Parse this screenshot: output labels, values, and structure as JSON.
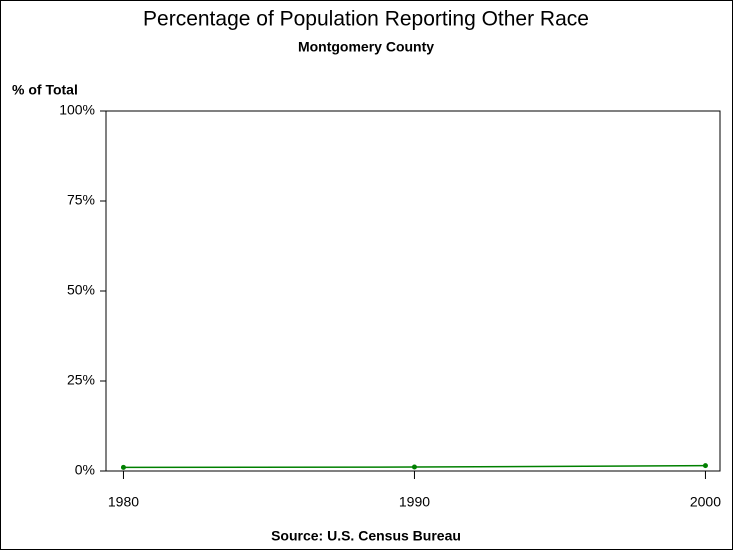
{
  "chart_data": {
    "type": "line",
    "title": "Percentage of Population Reporting Other Race",
    "subtitle": "Montgomery County",
    "y_label": "% of Total",
    "source": "Source: U.S. Census Bureau",
    "x": [
      1980,
      1990,
      2000
    ],
    "series": [
      {
        "name": "Montgomery County",
        "color": "#008000",
        "values": [
          1.0,
          1.1,
          1.5
        ]
      }
    ],
    "xlim": [
      1979.4,
      2000.5
    ],
    "xticks": [
      1980,
      1990,
      2000
    ],
    "ylim": [
      0,
      100
    ],
    "yticks": [
      {
        "value": 0,
        "label": "0%"
      },
      {
        "value": 25,
        "label": "25%"
      },
      {
        "value": 50,
        "label": "50%"
      },
      {
        "value": 75,
        "label": "75%"
      },
      {
        "value": 100,
        "label": "100%"
      }
    ],
    "grid": false
  }
}
